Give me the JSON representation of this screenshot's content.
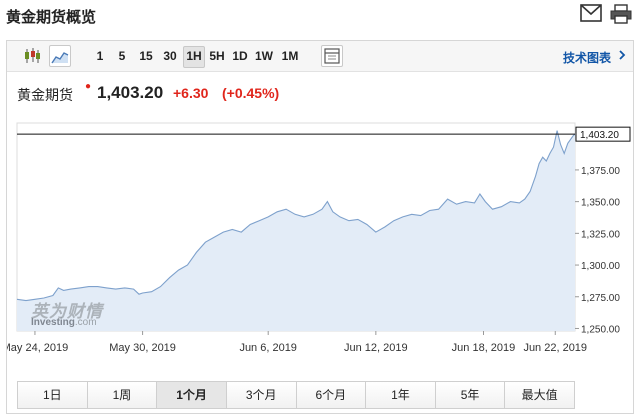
{
  "page": {
    "title": "黄金期货概览"
  },
  "toolbar": {
    "timeframes": [
      "1",
      "5",
      "15",
      "30",
      "1H",
      "5H",
      "1D",
      "1W",
      "1M"
    ],
    "active_timeframe": "1H",
    "tech_link": "技术图表"
  },
  "quote": {
    "name": "黄金期货",
    "price": "1,403.20",
    "change": "+6.30",
    "change_pct": "(+0.45%)",
    "up_color": "#e0251b"
  },
  "watermark": {
    "line1": "英为财情",
    "line2a": "Investing",
    "line2b": ".com"
  },
  "periods": {
    "items": [
      "1日",
      "1周",
      "1个月",
      "3个月",
      "6个月",
      "1年",
      "5年",
      "最大值"
    ],
    "active": "1个月"
  },
  "chart_data": {
    "type": "area",
    "y_ticks": [
      "1,375.00",
      "1,350.00",
      "1,325.00",
      "1,300.00",
      "1,275.00",
      "1,250.00"
    ],
    "y_tick_values": [
      1375,
      1350,
      1325,
      1300,
      1275,
      1250
    ],
    "ylim": [
      1248,
      1412
    ],
    "x_ticks": [
      "May 24, 2019",
      "May 30, 2019",
      "Jun 6, 2019",
      "Jun 12, 2019",
      "Jun 18, 2019",
      "Jun 22, 2019"
    ],
    "x_tick_days": [
      0,
      6,
      13,
      19,
      25,
      29
    ],
    "xlim": [
      -1.0,
      30.1
    ],
    "current_value": 1403.2,
    "current_label": "1,403.20",
    "points": [
      [
        -1.0,
        1273
      ],
      [
        -0.5,
        1272
      ],
      [
        0.0,
        1273
      ],
      [
        0.5,
        1274
      ],
      [
        1.0,
        1276
      ],
      [
        1.3,
        1282
      ],
      [
        1.6,
        1280
      ],
      [
        2.0,
        1281
      ],
      [
        2.5,
        1282
      ],
      [
        3.0,
        1283
      ],
      [
        3.5,
        1283
      ],
      [
        4.0,
        1282
      ],
      [
        4.5,
        1281
      ],
      [
        5.0,
        1282
      ],
      [
        5.5,
        1281
      ],
      [
        5.8,
        1277
      ],
      [
        6.0,
        1278
      ],
      [
        6.5,
        1279
      ],
      [
        7.0,
        1283
      ],
      [
        7.5,
        1290
      ],
      [
        8.0,
        1296
      ],
      [
        8.5,
        1300
      ],
      [
        9.0,
        1310
      ],
      [
        9.5,
        1318
      ],
      [
        10.0,
        1322
      ],
      [
        10.5,
        1326
      ],
      [
        11.0,
        1328
      ],
      [
        11.5,
        1326
      ],
      [
        12.0,
        1332
      ],
      [
        12.5,
        1335
      ],
      [
        13.0,
        1338
      ],
      [
        13.5,
        1342
      ],
      [
        14.0,
        1344
      ],
      [
        14.5,
        1340
      ],
      [
        15.0,
        1338
      ],
      [
        15.5,
        1340
      ],
      [
        16.0,
        1344
      ],
      [
        16.3,
        1350
      ],
      [
        16.6,
        1342
      ],
      [
        17.0,
        1338
      ],
      [
        17.5,
        1335
      ],
      [
        18.0,
        1336
      ],
      [
        18.5,
        1332
      ],
      [
        19.0,
        1326
      ],
      [
        19.5,
        1330
      ],
      [
        20.0,
        1335
      ],
      [
        20.5,
        1338
      ],
      [
        21.0,
        1340
      ],
      [
        21.5,
        1339
      ],
      [
        22.0,
        1343
      ],
      [
        22.5,
        1344
      ],
      [
        23.0,
        1352
      ],
      [
        23.5,
        1348
      ],
      [
        24.0,
        1350
      ],
      [
        24.5,
        1349
      ],
      [
        24.8,
        1356
      ],
      [
        25.1,
        1350
      ],
      [
        25.5,
        1344
      ],
      [
        26.0,
        1346
      ],
      [
        26.5,
        1350
      ],
      [
        27.0,
        1349
      ],
      [
        27.3,
        1352
      ],
      [
        27.6,
        1358
      ],
      [
        27.9,
        1370
      ],
      [
        28.1,
        1380
      ],
      [
        28.3,
        1385
      ],
      [
        28.5,
        1382
      ],
      [
        28.7,
        1388
      ],
      [
        28.9,
        1393
      ],
      [
        29.1,
        1406
      ],
      [
        29.3,
        1395
      ],
      [
        29.5,
        1388
      ],
      [
        29.7,
        1396
      ],
      [
        30.0,
        1402
      ],
      [
        30.1,
        1403.2
      ]
    ]
  }
}
